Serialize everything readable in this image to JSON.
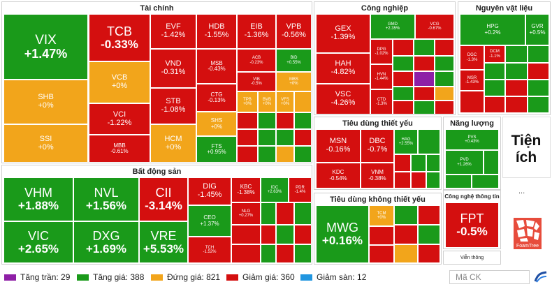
{
  "sectors": {
    "tai_chinh": "Tài chính",
    "cong_nghiep": "Công nghiệp",
    "nguyen_vat_lieu": "Nguyên vật liệu",
    "bat_dong_san": "Bất động sản",
    "tieu_dung_thiet_yeu": "Tiêu dùng thiết yếu",
    "nang_luong": "Năng lượng",
    "tieu_dung_khong_thiet_yeu": "Tiêu dùng không thiết yếu",
    "cong_nghe_thong_tin": "Công nghệ thông tin",
    "tien_ich": "Tiện ích",
    "vien_thong": "Viễn thông"
  },
  "tiles": {
    "vix": {
      "t": "VIX",
      "p": "+1.47%"
    },
    "tcb": {
      "t": "TCB",
      "p": "-0.33%"
    },
    "evf": {
      "t": "EVF",
      "p": "-1.42%"
    },
    "hdb": {
      "t": "HDB",
      "p": "-1.55%"
    },
    "eib": {
      "t": "EIB",
      "p": "-1.36%"
    },
    "vpb": {
      "t": "VPB",
      "p": "-0.56%"
    },
    "shb": {
      "t": "SHB",
      "p": "+0%"
    },
    "ssi": {
      "t": "SSI",
      "p": "+0%"
    },
    "vcb": {
      "t": "VCB",
      "p": "+0%"
    },
    "vci": {
      "t": "VCI",
      "p": "-1.22%"
    },
    "mbb": {
      "t": "MBB",
      "p": "-0.61%"
    },
    "vnd": {
      "t": "VND",
      "p": "-0.31%"
    },
    "stb": {
      "t": "STB",
      "p": "-1.08%"
    },
    "hcm": {
      "t": "HCM",
      "p": "+0%"
    },
    "msb": {
      "t": "MSB",
      "p": "-0.43%"
    },
    "acb": {
      "t": "ACB",
      "p": "-0.23%"
    },
    "bid": {
      "t": "BID",
      "p": "+0.55%"
    },
    "ctg": {
      "t": "CTG",
      "p": "-0.13%"
    },
    "vib": {
      "t": "VIB",
      "p": "-0.5%"
    },
    "mbs": {
      "t": "MBS",
      "p": "+0%"
    },
    "shs": {
      "t": "SHS",
      "p": "+0%"
    },
    "tpb": {
      "t": "TPB",
      "p": "+0%"
    },
    "bvb": {
      "t": "BVB",
      "p": "+0%"
    },
    "vfs": {
      "t": "VFS",
      "p": "+0%"
    },
    "fts": {
      "t": "FTS",
      "p": "+0.95%"
    },
    "gex": {
      "t": "GEX",
      "p": "-1.39%"
    },
    "gmd": {
      "t": "GMD",
      "p": "+2.35%"
    },
    "vcg": {
      "t": "VCG",
      "p": "-0.67%"
    },
    "hah": {
      "t": "HAH",
      "p": "-4.82%"
    },
    "dpg": {
      "t": "DPG",
      "p": "-1.02%"
    },
    "vsc": {
      "t": "VSC",
      "p": "-4.26%"
    },
    "hvn": {
      "t": "HVN",
      "p": "-1.44%"
    },
    "ctd": {
      "t": "CTD",
      "p": "-1.3%"
    },
    "hpg": {
      "t": "HPG",
      "p": "+0.2%"
    },
    "gvr": {
      "t": "GVR",
      "p": "+0.5%"
    },
    "dgc": {
      "t": "DGC",
      "p": "-1.3%"
    },
    "dcm": {
      "t": "DCM",
      "p": "-1.1%"
    },
    "msr": {
      "t": "MSR",
      "p": "-1.43%"
    },
    "vhm": {
      "t": "VHM",
      "p": "+1.88%"
    },
    "nvl": {
      "t": "NVL",
      "p": "+1.56%"
    },
    "cii": {
      "t": "CII",
      "p": "-3.14%"
    },
    "dig": {
      "t": "DIG",
      "p": "-1.45%"
    },
    "kbc": {
      "t": "KBC",
      "p": "-1.38%"
    },
    "idc": {
      "t": "IDC",
      "p": "+2.63%"
    },
    "pdr": {
      "t": "PDR",
      "p": "-1.4%"
    },
    "vic": {
      "t": "VIC",
      "p": "+2.65%"
    },
    "dxg": {
      "t": "DXG",
      "p": "+1.69%"
    },
    "vre": {
      "t": "VRE",
      "p": "+5.53%"
    },
    "ceo": {
      "t": "CEO",
      "p": "+1.37%"
    },
    "nlg": {
      "t": "NLG",
      "p": "+0.27%"
    },
    "tch": {
      "t": "TCH",
      "p": "-1.52%"
    },
    "msn": {
      "t": "MSN",
      "p": "-0.16%"
    },
    "dbc": {
      "t": "DBC",
      "p": "-0.7%"
    },
    "hag": {
      "t": "HAG",
      "p": "+2.55%"
    },
    "kdc": {
      "t": "KDC",
      "p": "-0.54%"
    },
    "vnm": {
      "t": "VNM",
      "p": "-0.38%"
    },
    "pvs": {
      "t": "PVS",
      "p": "+0.43%"
    },
    "pvd": {
      "t": "PVD",
      "p": "+1.26%"
    },
    "mwg": {
      "t": "MWG",
      "p": "+0.16%"
    },
    "tcm": {
      "t": "TCM",
      "p": "+0%"
    },
    "fpt": {
      "t": "FPT",
      "p": "-0.5%"
    }
  },
  "legend": {
    "tang_tran": "Tăng trần: 29",
    "tang_gia": "Tăng giá: 388",
    "dung_gia": "Đứng giá: 821",
    "giam_gia": "Giảm giá: 360",
    "giam_san": "Giảm sàn: 12"
  },
  "search": {
    "placeholder": "Mã CK"
  },
  "misc": {
    "more": "...",
    "foamtree": "FoamTree"
  },
  "colors": {
    "ceiling": "#8e1fa6",
    "up": "#1a9a1a",
    "flat": "#f2a51b",
    "down": "#d40f0f",
    "floor": "#2196e0"
  }
}
